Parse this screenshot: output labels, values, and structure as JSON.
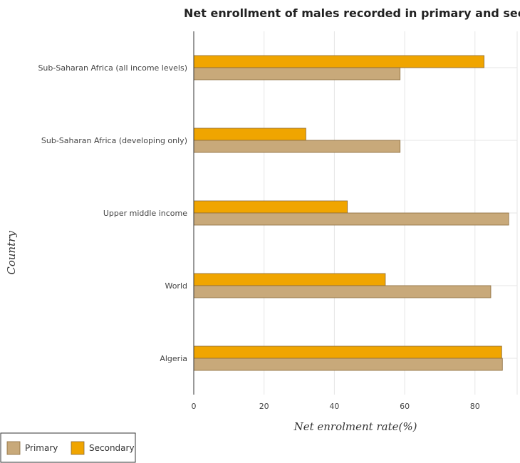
{
  "chart_data": {
    "type": "bar",
    "orientation": "horizontal",
    "title": "Net enrollment of males recorded in primary and seco",
    "xlabel": "Net enrolment rate(%)",
    "ylabel": "Country",
    "xlim": [
      0,
      92
    ],
    "xticks": [
      0,
      20,
      40,
      60,
      80
    ],
    "categories": [
      "Sub-Saharan Africa (all income levels)",
      "Sub-Saharan Africa (developing only)",
      "Upper middle income",
      "World",
      "Algeria"
    ],
    "series": [
      {
        "name": "Primary",
        "color": "#c8a97a",
        "values": [
          58.7,
          58.7,
          89.6,
          84.5,
          87.8
        ]
      },
      {
        "name": "Secondary",
        "color": "#f0a500",
        "values": [
          82.6,
          31.9,
          43.7,
          54.5,
          87.6
        ]
      }
    ],
    "grid": true,
    "legend_position": "bottom-left"
  }
}
